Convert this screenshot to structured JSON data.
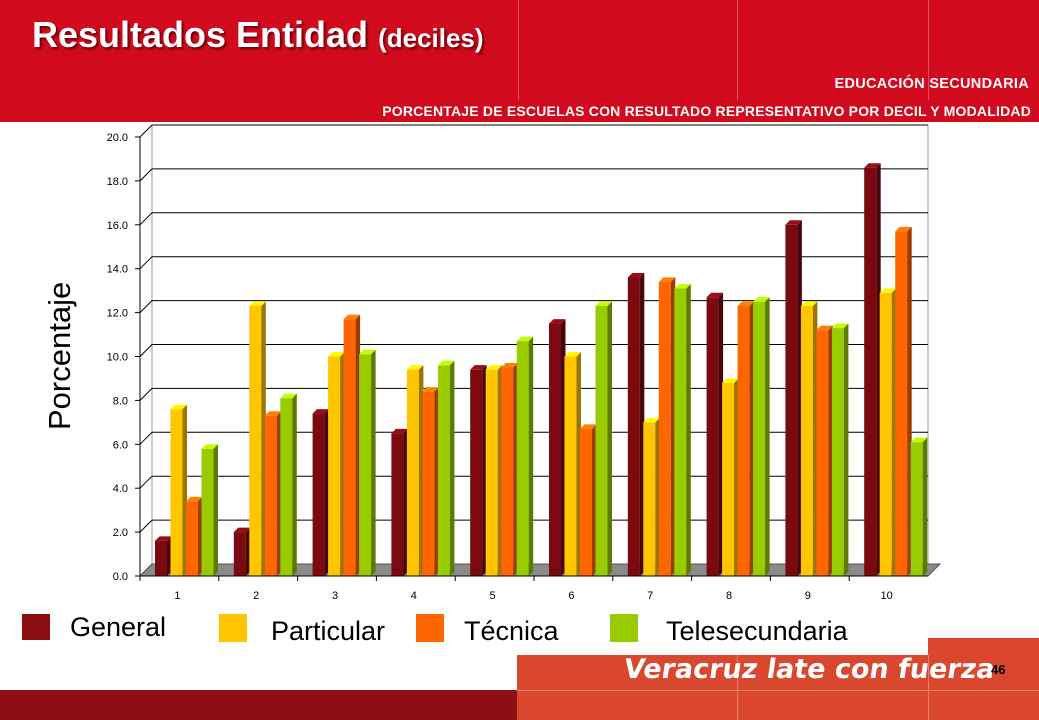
{
  "header": {
    "title_main": "Resultados Entidad",
    "title_paren": "(deciles)",
    "line1": "EDUCACIÓN SECUNDARIA",
    "line2": "PORCENTAJE DE ESCUELAS CON RESULTADO REPRESENTATIVO POR DECIL Y MODALIDAD"
  },
  "footer": {
    "slogan": "Veracruz late con fuerza",
    "page_number": "46"
  },
  "colors": {
    "brand_red": "#d10a1e",
    "dark_red": "#8c0f14",
    "General": "#7a0a10",
    "Particular": "#ffc600",
    "Técnica": "#ff6600",
    "Telesecundaria": "#99cc00"
  },
  "chart_data": {
    "type": "bar",
    "categories": [
      "1",
      "2",
      "3",
      "4",
      "5",
      "6",
      "7",
      "8",
      "9",
      "10"
    ],
    "ylabel": "Porcentaje",
    "xlabel": "",
    "ylim": [
      0,
      20
    ],
    "yticks": [
      "0.0",
      "2.0",
      "4.0",
      "6.0",
      "8.0",
      "10.0",
      "12.0",
      "14.0",
      "16.0",
      "18.0",
      "20.0"
    ],
    "grid": true,
    "legend_position": "bottom",
    "series": [
      {
        "name": "General",
        "values": [
          1.6,
          2.0,
          7.4,
          6.5,
          9.4,
          11.5,
          13.6,
          12.7,
          16.0,
          18.6
        ]
      },
      {
        "name": "Particular",
        "values": [
          7.6,
          12.3,
          10.0,
          9.4,
          9.4,
          10.0,
          7.0,
          8.8,
          12.3,
          12.9
        ]
      },
      {
        "name": "Técnica",
        "values": [
          3.4,
          7.3,
          11.7,
          8.4,
          9.5,
          6.7,
          13.4,
          12.3,
          11.2,
          15.7
        ]
      },
      {
        "name": "Telesecundaria",
        "values": [
          5.8,
          8.1,
          10.1,
          9.6,
          10.7,
          12.3,
          13.1,
          12.5,
          11.3,
          6.1
        ]
      }
    ]
  }
}
